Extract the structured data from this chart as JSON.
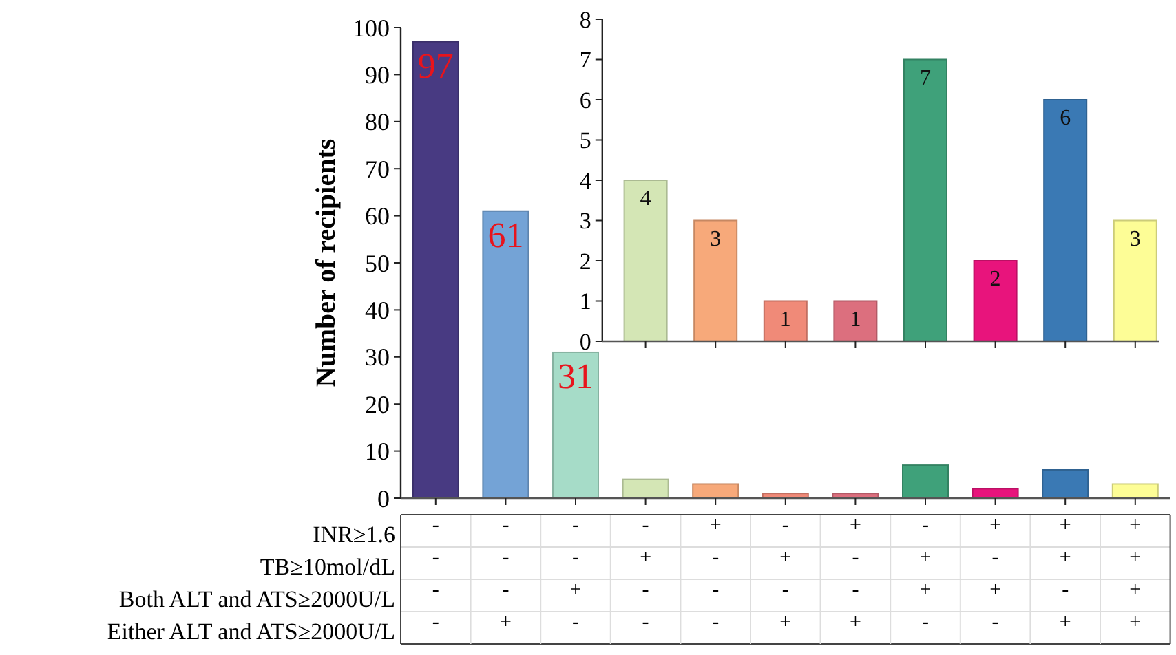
{
  "chart_data": [
    {
      "type": "bar",
      "ylabel": "Number of recipients",
      "categories": [
        "-\n-\n-\n-",
        "-\n-\n-\n+",
        "-\n-\n+\n-",
        "-\n+\n-\n-",
        "+\n-\n-\n-",
        "-\n+\n-\n+",
        "+\n-\n-\n+",
        "-\n+\n+\n-",
        "+\n-\n+\n-",
        "+\n+\n-\n+",
        "+\n+\n+\n+"
      ],
      "values": [
        97,
        61,
        31,
        4,
        3,
        1,
        1,
        7,
        2,
        6,
        3
      ],
      "colors": [
        "#483a82",
        "#74a3d6",
        "#a6dcc8",
        "#d4e6b5",
        "#f7a97a",
        "#f08a78",
        "#dc6f7e",
        "#3fa17a",
        "#e8147c",
        "#3a79b4",
        "#fdfd96"
      ],
      "value_labels": [
        "97",
        "61",
        "31",
        null,
        null,
        null,
        null,
        null,
        null,
        null,
        null
      ],
      "ylim": [
        0,
        100
      ],
      "yticks": [
        0,
        10,
        20,
        30,
        40,
        50,
        60,
        70,
        80,
        90,
        100
      ],
      "annotations": [
        "INR≥1.6",
        "TB≥10mol/dL",
        "Both ALT and ATS≥2000U/L",
        "Either ALT and ATS≥2000U/L"
      ]
    },
    {
      "type": "bar",
      "categories": [
        null,
        null,
        null,
        null,
        null,
        null,
        null,
        null
      ],
      "values": [
        4,
        3,
        1,
        1,
        7,
        2,
        6,
        3
      ],
      "colors": [
        "#d4e6b5",
        "#f7a97a",
        "#f08a78",
        "#dc6f7e",
        "#3fa17a",
        "#e8147c",
        "#3a79b4",
        "#fdfd96"
      ],
      "data_labels": true,
      "ylim": [
        0,
        8
      ],
      "yticks": [
        0,
        1,
        2,
        3,
        4,
        5,
        6,
        7,
        8
      ]
    }
  ]
}
